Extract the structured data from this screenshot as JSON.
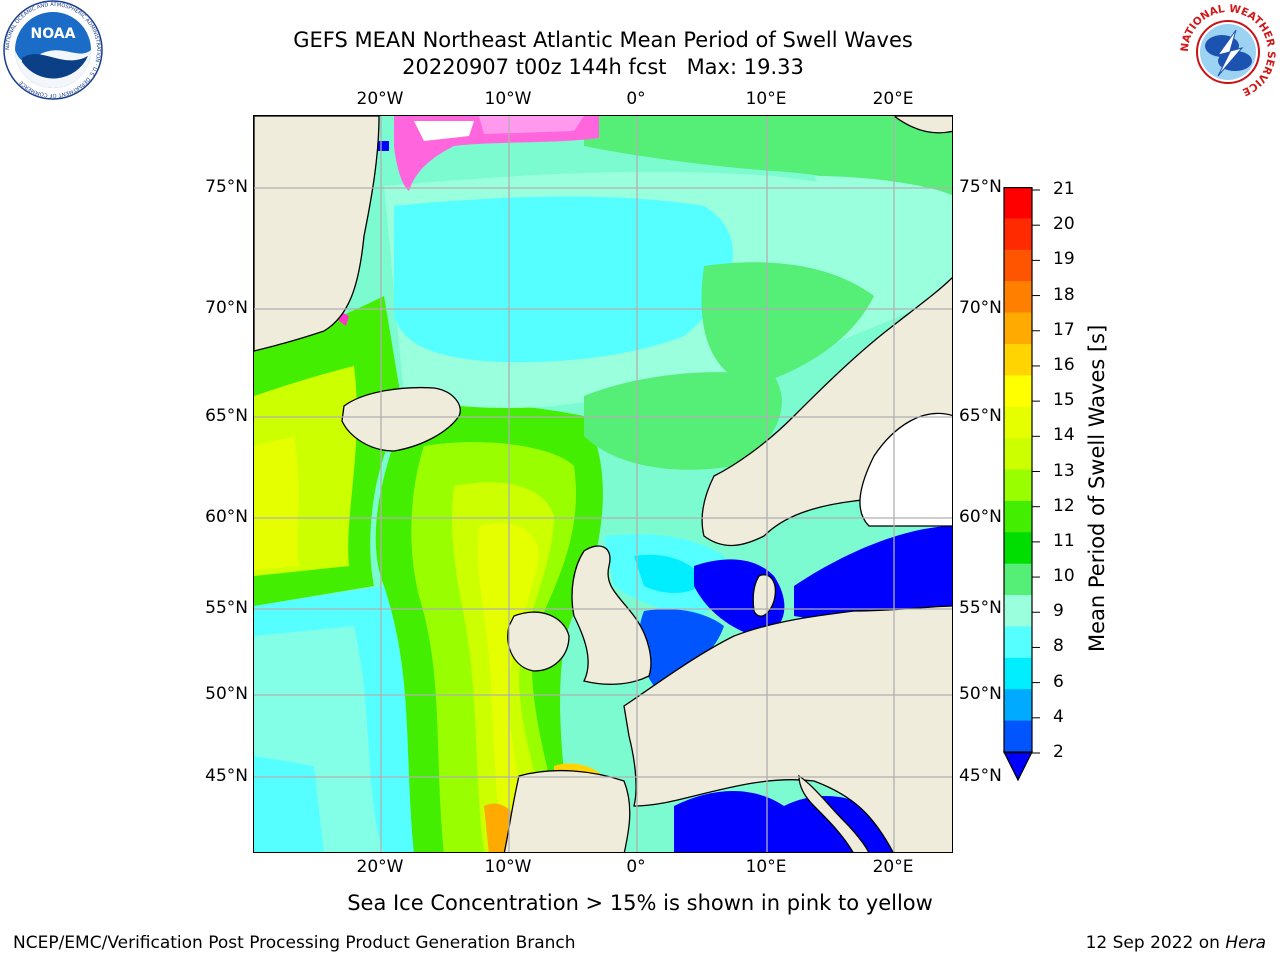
{
  "title": {
    "line1": "GEFS MEAN Northeast Atlantic Mean Period of Swell Waves",
    "line2": "20220907 t00z 144h fcst   Max: 19.33"
  },
  "logos": {
    "noaa": {
      "text": "NOAA",
      "ring_text": "NATIONAL OCEANIC AND ATMOSPHERIC ADMINISTRATION · U.S. DEPARTMENT OF COMMERCE"
    },
    "nws": {
      "ring_text": "NATIONAL WEATHER SERVICE"
    }
  },
  "map": {
    "region": "Northeast Atlantic",
    "lon_range": [
      -30,
      25
    ],
    "lat_range": [
      41,
      78
    ],
    "top_lon_labels": [
      "20°W",
      "10°W",
      "0°",
      "10°E",
      "20°E"
    ],
    "bottom_lon_labels": [
      "20°W",
      "10°W",
      "0°",
      "10°E",
      "20°E"
    ],
    "left_lat_labels": [
      "75°N",
      "70°N",
      "65°N",
      "60°N",
      "55°N",
      "50°N",
      "45°N"
    ],
    "right_lat_labels": [
      "75°N",
      "70°N",
      "65°N",
      "60°N",
      "55°N",
      "50°N",
      "45°N"
    ],
    "land_color": "#efecdc",
    "grid_color": "#b0b0b0"
  },
  "colorbar": {
    "label": "Mean Period of Swell Waves [s]",
    "ticks": [
      "21",
      "20",
      "19",
      "18",
      "17",
      "16",
      "15",
      "14",
      "13",
      "12",
      "11",
      "10",
      "9",
      "8",
      "6",
      "4",
      "2"
    ],
    "colors_top_to_bottom": [
      "#ff0000",
      "#ff2a00",
      "#ff5500",
      "#ff8000",
      "#ffaa00",
      "#ffd400",
      "#ffff00",
      "#e6ff00",
      "#ccff00",
      "#99ff00",
      "#44ee00",
      "#00dd00",
      "#55ee77",
      "#99ffdd",
      "#55ffff",
      "#00eeff",
      "#00aaff",
      "#0055ff"
    ],
    "extend_color": "#0000ff"
  },
  "note": "Sea Ice Concentration > 15% is shown in pink to yellow",
  "footer": {
    "left": "NCEP/EMC/Verification Post Processing Product Generation Branch",
    "right_date": "12 Sep 2022 on ",
    "right_host": "Hera"
  }
}
